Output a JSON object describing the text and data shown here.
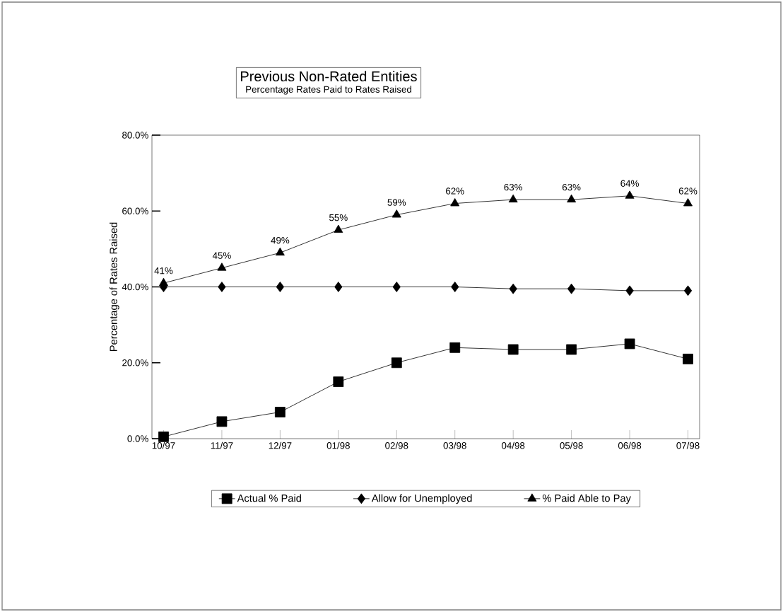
{
  "chart_data": {
    "type": "line",
    "title": "Previous Non-Rated Entities",
    "subtitle": "Percentage Rates Paid to Rates Raised",
    "ylabel": "Percentage of Rates Raised",
    "categories": [
      "10/97",
      "11/97",
      "12/97",
      "01/98",
      "02/98",
      "03/98",
      "04/98",
      "05/98",
      "06/98",
      "07/98"
    ],
    "series": [
      {
        "name": "Actual % Paid",
        "color": "#000000",
        "marker": "square",
        "values": [
          0.5,
          4.5,
          7,
          15,
          20,
          24,
          23.5,
          23.5,
          25,
          21
        ]
      },
      {
        "name": "Allow for Unemployed",
        "color": "#000000",
        "marker": "diamond",
        "values": [
          40,
          40,
          40,
          40,
          40,
          40,
          39.5,
          39.5,
          39,
          39
        ]
      },
      {
        "name": "% Paid Able to Pay",
        "color": "#000000",
        "marker": "triangle",
        "values": [
          41,
          45,
          49,
          55,
          59,
          62,
          63,
          63,
          64,
          62
        ],
        "value_labels": [
          "41%",
          "45%",
          "49%",
          "55%",
          "59%",
          "62%",
          "63%",
          "63%",
          "64%",
          "62%"
        ]
      }
    ],
    "ylim": [
      0,
      80
    ],
    "yticks": [
      {
        "value": 0,
        "label": "0.0%"
      },
      {
        "value": 20,
        "label": "20.0%"
      },
      {
        "value": 40,
        "label": "40.0%"
      },
      {
        "value": 60,
        "label": "60.0%"
      },
      {
        "value": 80,
        "label": "80.0%"
      }
    ],
    "legend": "bottom",
    "grid": false,
    "line_style": "solid"
  }
}
